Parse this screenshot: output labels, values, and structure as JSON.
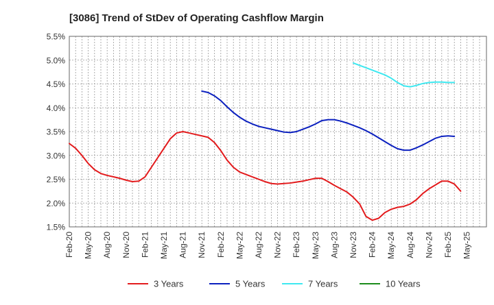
{
  "chart_data": {
    "type": "line",
    "title": "[3086]  Trend of StDev of Operating Cashflow Margin",
    "xlabel": "",
    "ylabel": "",
    "ylim": [
      1.5,
      5.5
    ],
    "y_ticks": [
      "1.5%",
      "2.0%",
      "2.5%",
      "3.0%",
      "3.5%",
      "4.0%",
      "4.5%",
      "5.0%",
      "5.5%"
    ],
    "x_ticks": [
      "Feb-20",
      "May-20",
      "Aug-20",
      "Nov-20",
      "Feb-21",
      "May-21",
      "Aug-21",
      "Nov-21",
      "Feb-22",
      "May-22",
      "Aug-22",
      "Nov-22",
      "Feb-23",
      "May-23",
      "Aug-23",
      "Nov-23",
      "Feb-24",
      "May-24",
      "Aug-24",
      "Nov-24",
      "Feb-25",
      "May-25"
    ],
    "grid": true,
    "legend_position": "bottom",
    "series": [
      {
        "name": "3 Years",
        "color": "#e31a1c",
        "start": "Feb-20",
        "values": [
          3.25,
          3.15,
          3.0,
          2.83,
          2.7,
          2.62,
          2.58,
          2.55,
          2.52,
          2.48,
          2.45,
          2.46,
          2.55,
          2.75,
          2.95,
          3.15,
          3.35,
          3.47,
          3.5,
          3.47,
          3.44,
          3.41,
          3.38,
          3.27,
          3.1,
          2.9,
          2.75,
          2.65,
          2.6,
          2.55,
          2.5,
          2.45,
          2.41,
          2.4,
          2.41,
          2.42,
          2.44,
          2.46,
          2.49,
          2.52,
          2.52,
          2.45,
          2.37,
          2.3,
          2.23,
          2.12,
          1.98,
          1.72,
          1.64,
          1.68,
          1.8,
          1.87,
          1.91,
          1.93,
          1.98,
          2.07,
          2.2,
          2.3,
          2.38,
          2.46,
          2.46,
          2.4,
          2.25
        ]
      },
      {
        "name": "5 Years",
        "color": "#0a1fbf",
        "start": "Nov-21",
        "values": [
          4.35,
          4.32,
          4.25,
          4.15,
          4.02,
          3.9,
          3.8,
          3.72,
          3.66,
          3.61,
          3.58,
          3.55,
          3.52,
          3.49,
          3.48,
          3.5,
          3.55,
          3.6,
          3.66,
          3.73,
          3.75,
          3.75,
          3.72,
          3.68,
          3.63,
          3.58,
          3.52,
          3.45,
          3.37,
          3.29,
          3.21,
          3.14,
          3.11,
          3.11,
          3.16,
          3.22,
          3.29,
          3.36,
          3.4,
          3.41,
          3.4
        ]
      },
      {
        "name": "7 Years",
        "color": "#3de8f0",
        "start": "Nov-23",
        "values": [
          4.94,
          4.89,
          4.84,
          4.79,
          4.74,
          4.69,
          4.62,
          4.53,
          4.46,
          4.44,
          4.47,
          4.51,
          4.53,
          4.54,
          4.54,
          4.53,
          4.53
        ]
      },
      {
        "name": "10 Years",
        "color": "#1a8c1a",
        "start": "Feb-25",
        "values": []
      }
    ]
  }
}
